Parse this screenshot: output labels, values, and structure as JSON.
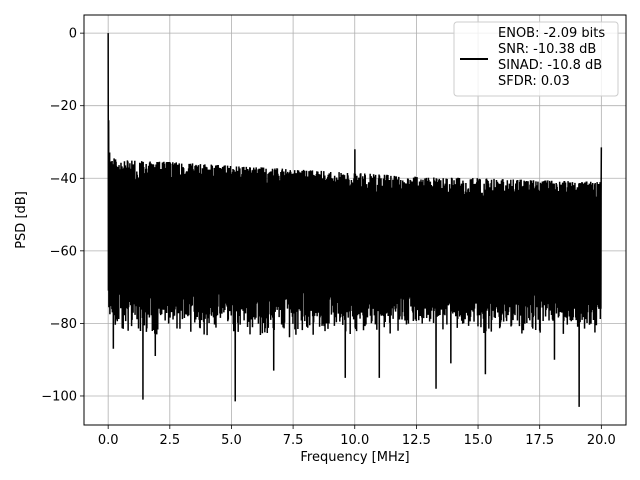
{
  "chart_data": {
    "type": "line",
    "title": "",
    "xlabel": "Frequency [MHz]",
    "ylabel": "PSD [dB]",
    "xlim": [
      -0.98,
      21.0
    ],
    "ylim": [
      -108.0,
      5.0
    ],
    "xticks": [
      0.0,
      2.5,
      5.0,
      7.5,
      10.0,
      12.5,
      15.0,
      17.5,
      20.0
    ],
    "xtick_labels": [
      "0.0",
      "2.5",
      "5.0",
      "7.5",
      "10.0",
      "12.5",
      "15.0",
      "17.5",
      "20.0"
    ],
    "yticks": [
      0,
      -20,
      -40,
      -60,
      -80,
      -100
    ],
    "ytick_labels": [
      "0",
      "−20",
      "−40",
      "−60",
      "−80",
      "−100"
    ],
    "grid": true,
    "legend_position": "top-right",
    "legend": [
      "ENOB: -2.09 bits",
      "SNR: -10.38 dB",
      "SINAD: -10.8 dB",
      "SFDR: 0.03"
    ],
    "series": [
      {
        "color": "#000000",
        "x_range": [
          0.0,
          20.0
        ],
        "points": 2000,
        "noise_floor_upper_envelope": {
          "x": [
            0.0,
            0.1,
            0.5,
            2.5,
            5.0,
            7.5,
            10.0,
            12.5,
            15.0,
            17.5,
            20.0
          ],
          "y": [
            -30,
            -34,
            -35,
            -35.5,
            -36.5,
            -37.5,
            -38.5,
            -39.5,
            -40.0,
            -40.5,
            -41.0
          ]
        },
        "noise_floor_lower_range": [
          -84,
          -76
        ],
        "spikes": [
          {
            "x": 0.0,
            "y": 0.0
          },
          {
            "x": 0.02,
            "y": -24.0
          },
          {
            "x": 10.0,
            "y": -32.0
          },
          {
            "x": 20.0,
            "y": -31.5
          }
        ],
        "dips": [
          {
            "x": 0.2,
            "y": -87.0
          },
          {
            "x": 1.4,
            "y": -101.0
          },
          {
            "x": 1.9,
            "y": -89.0
          },
          {
            "x": 5.15,
            "y": -101.5
          },
          {
            "x": 6.7,
            "y": -93.0
          },
          {
            "x": 9.6,
            "y": -95.0
          },
          {
            "x": 11.0,
            "y": -95.0
          },
          {
            "x": 13.3,
            "y": -98.0
          },
          {
            "x": 13.9,
            "y": -91.0
          },
          {
            "x": 15.3,
            "y": -94.0
          },
          {
            "x": 18.1,
            "y": -90.0
          },
          {
            "x": 19.1,
            "y": -103.0
          }
        ]
      }
    ]
  }
}
